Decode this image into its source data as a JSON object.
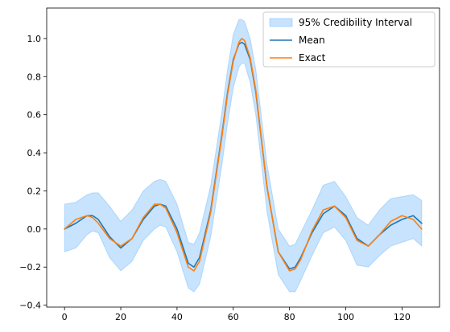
{
  "chart_data": {
    "type": "line",
    "title": "",
    "xlabel": "",
    "ylabel": "",
    "xlim": [
      -6.35,
      133.35
    ],
    "ylim": [
      -0.41,
      1.16
    ],
    "xticks": [
      0,
      20,
      40,
      60,
      80,
      100,
      120
    ],
    "xtick_labels": [
      "0",
      "20",
      "40",
      "60",
      "80",
      "100",
      "120"
    ],
    "yticks": [
      -0.4,
      -0.2,
      0.0,
      0.2,
      0.4,
      0.6,
      0.8,
      1.0
    ],
    "ytick_labels": [
      "−0.4",
      "−0.2",
      "0.0",
      "0.2",
      "0.4",
      "0.6",
      "0.8",
      "1.0"
    ],
    "grid": false,
    "legend_position": "top-right",
    "x": [
      0,
      4,
      8,
      10,
      12,
      16,
      20,
      24,
      28,
      32,
      34,
      36,
      40,
      44,
      46,
      48,
      52,
      56,
      58,
      60,
      62,
      63,
      64,
      66,
      68,
      72,
      76,
      80,
      82,
      84,
      88,
      92,
      96,
      100,
      104,
      108,
      112,
      116,
      120,
      124,
      127
    ],
    "series": [
      {
        "name": "95% Credibility Interval",
        "kind": "band",
        "color": "#1f8ff7",
        "opacity": 0.25,
        "upper": [
          0.13,
          0.14,
          0.18,
          0.19,
          0.19,
          0.12,
          0.04,
          0.1,
          0.2,
          0.25,
          0.26,
          0.25,
          0.13,
          -0.07,
          -0.08,
          -0.02,
          0.23,
          0.62,
          0.84,
          1.02,
          1.1,
          1.1,
          1.09,
          1.0,
          0.84,
          0.34,
          0.0,
          -0.09,
          -0.08,
          -0.02,
          0.1,
          0.23,
          0.25,
          0.17,
          0.06,
          0.02,
          0.1,
          0.16,
          0.17,
          0.18,
          0.15
        ],
        "lower": [
          -0.12,
          -0.1,
          -0.03,
          -0.01,
          -0.02,
          -0.15,
          -0.22,
          -0.17,
          -0.06,
          0.0,
          0.02,
          0.01,
          -0.12,
          -0.31,
          -0.33,
          -0.29,
          -0.04,
          0.34,
          0.56,
          0.74,
          0.85,
          0.87,
          0.87,
          0.77,
          0.6,
          0.09,
          -0.24,
          -0.33,
          -0.33,
          -0.27,
          -0.14,
          -0.02,
          0.01,
          -0.06,
          -0.19,
          -0.2,
          -0.14,
          -0.09,
          -0.07,
          -0.05,
          -0.09
        ]
      },
      {
        "name": "Mean",
        "kind": "line",
        "color": "#1f77b4",
        "values": [
          0.0,
          0.03,
          0.07,
          0.07,
          0.05,
          -0.04,
          -0.1,
          -0.05,
          0.05,
          0.12,
          0.13,
          0.12,
          0.0,
          -0.18,
          -0.2,
          -0.15,
          0.1,
          0.5,
          0.72,
          0.89,
          0.97,
          0.98,
          0.97,
          0.89,
          0.72,
          0.22,
          -0.12,
          -0.21,
          -0.2,
          -0.15,
          -0.02,
          0.08,
          0.12,
          0.07,
          -0.05,
          -0.09,
          -0.03,
          0.02,
          0.05,
          0.07,
          0.03
        ]
      },
      {
        "name": "Exact",
        "kind": "line",
        "color": "#ff7f0e",
        "values": [
          0.0,
          0.05,
          0.07,
          0.06,
          0.03,
          -0.05,
          -0.09,
          -0.05,
          0.06,
          0.13,
          0.13,
          0.11,
          -0.02,
          -0.2,
          -0.22,
          -0.17,
          0.09,
          0.49,
          0.71,
          0.88,
          0.98,
          1.0,
          0.99,
          0.9,
          0.73,
          0.22,
          -0.12,
          -0.22,
          -0.21,
          -0.16,
          -0.01,
          0.1,
          0.12,
          0.06,
          -0.06,
          -0.09,
          -0.03,
          0.04,
          0.07,
          0.05,
          0.0
        ]
      }
    ]
  }
}
